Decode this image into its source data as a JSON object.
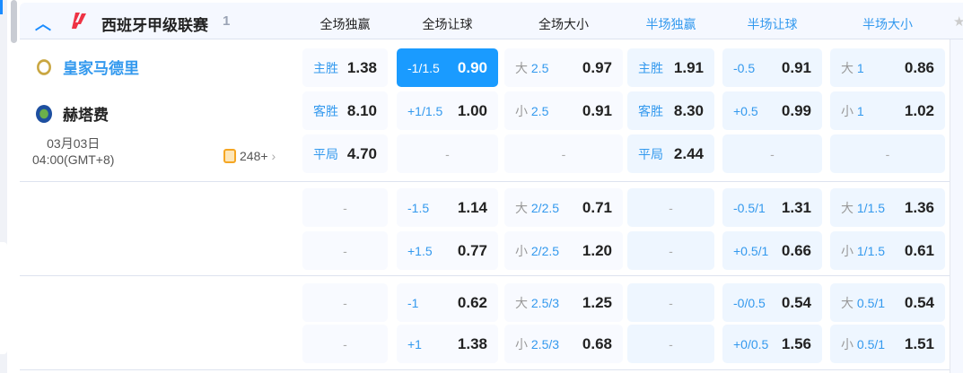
{
  "league": {
    "name": "西班牙甲级联赛",
    "count": "1",
    "icon": "laliga-logo"
  },
  "columns": [
    "全场独赢",
    "全场让球",
    "全场大小",
    "半场独赢",
    "半场让球",
    "半场大小"
  ],
  "match": {
    "home": "皇家马德里",
    "away": "赫塔费",
    "date": "03月03日",
    "time": "04:00(GMT+8)",
    "markets": "248+"
  },
  "colors": {
    "accent": "#1a9bff",
    "half_header": "#3399ee",
    "home_name": "#3399ee"
  },
  "groups": [
    {
      "rows": [
        [
          {
            "pre": "",
            "line": "主胜",
            "odds": "1.38"
          },
          {
            "pre": "",
            "line": "-1/1.5",
            "odds": "0.90",
            "selected": true
          },
          {
            "pre": "大",
            "line": " 2.5",
            "odds": "0.97"
          },
          {
            "pre": "",
            "line": "主胜",
            "odds": "1.91"
          },
          {
            "pre": "",
            "line": "-0.5",
            "odds": "0.91"
          },
          {
            "pre": "大",
            "line": " 1",
            "odds": "0.86"
          }
        ],
        [
          {
            "pre": "",
            "line": "客胜",
            "odds": "8.10"
          },
          {
            "pre": "",
            "line": "+1/1.5",
            "odds": "1.00"
          },
          {
            "pre": "小",
            "line": " 2.5",
            "odds": "0.91"
          },
          {
            "pre": "",
            "line": "客胜",
            "odds": "8.30"
          },
          {
            "pre": "",
            "line": "+0.5",
            "odds": "0.99"
          },
          {
            "pre": "小",
            "line": " 1",
            "odds": "1.02"
          }
        ],
        [
          {
            "pre": "",
            "line": "平局",
            "odds": "4.70"
          },
          {
            "dash": "-"
          },
          {
            "dash": "-"
          },
          {
            "pre": "",
            "line": "平局",
            "odds": "2.44"
          },
          {
            "dash": "-"
          },
          {
            "dash": "-"
          }
        ]
      ]
    },
    {
      "rows": [
        [
          {
            "dash": "-"
          },
          {
            "pre": "",
            "line": "-1.5",
            "odds": "1.14"
          },
          {
            "pre": "大",
            "line": " 2/2.5",
            "odds": "0.71"
          },
          {
            "dash": "-"
          },
          {
            "pre": "",
            "line": "-0.5/1",
            "odds": "1.31"
          },
          {
            "pre": "大",
            "line": " 1/1.5",
            "odds": "1.36"
          }
        ],
        [
          {
            "dash": "-"
          },
          {
            "pre": "",
            "line": "+1.5",
            "odds": "0.77"
          },
          {
            "pre": "小",
            "line": " 2/2.5",
            "odds": "1.20"
          },
          {
            "dash": "-"
          },
          {
            "pre": "",
            "line": "+0.5/1",
            "odds": "0.66"
          },
          {
            "pre": "小",
            "line": " 1/1.5",
            "odds": "0.61"
          }
        ]
      ]
    },
    {
      "rows": [
        [
          {
            "dash": "-"
          },
          {
            "pre": "",
            "line": "-1",
            "odds": "0.62"
          },
          {
            "pre": "大",
            "line": " 2.5/3",
            "odds": "1.25"
          },
          {
            "dash": "-"
          },
          {
            "pre": "",
            "line": "-0/0.5",
            "odds": "0.54"
          },
          {
            "pre": "大",
            "line": " 0.5/1",
            "odds": "0.54"
          }
        ],
        [
          {
            "dash": "-"
          },
          {
            "pre": "",
            "line": "+1",
            "odds": "1.38"
          },
          {
            "pre": "小",
            "line": " 2.5/3",
            "odds": "0.68"
          },
          {
            "dash": "-"
          },
          {
            "pre": "",
            "line": "+0/0.5",
            "odds": "1.56"
          },
          {
            "pre": "小",
            "line": " 0.5/1",
            "odds": "1.51"
          }
        ]
      ]
    }
  ]
}
